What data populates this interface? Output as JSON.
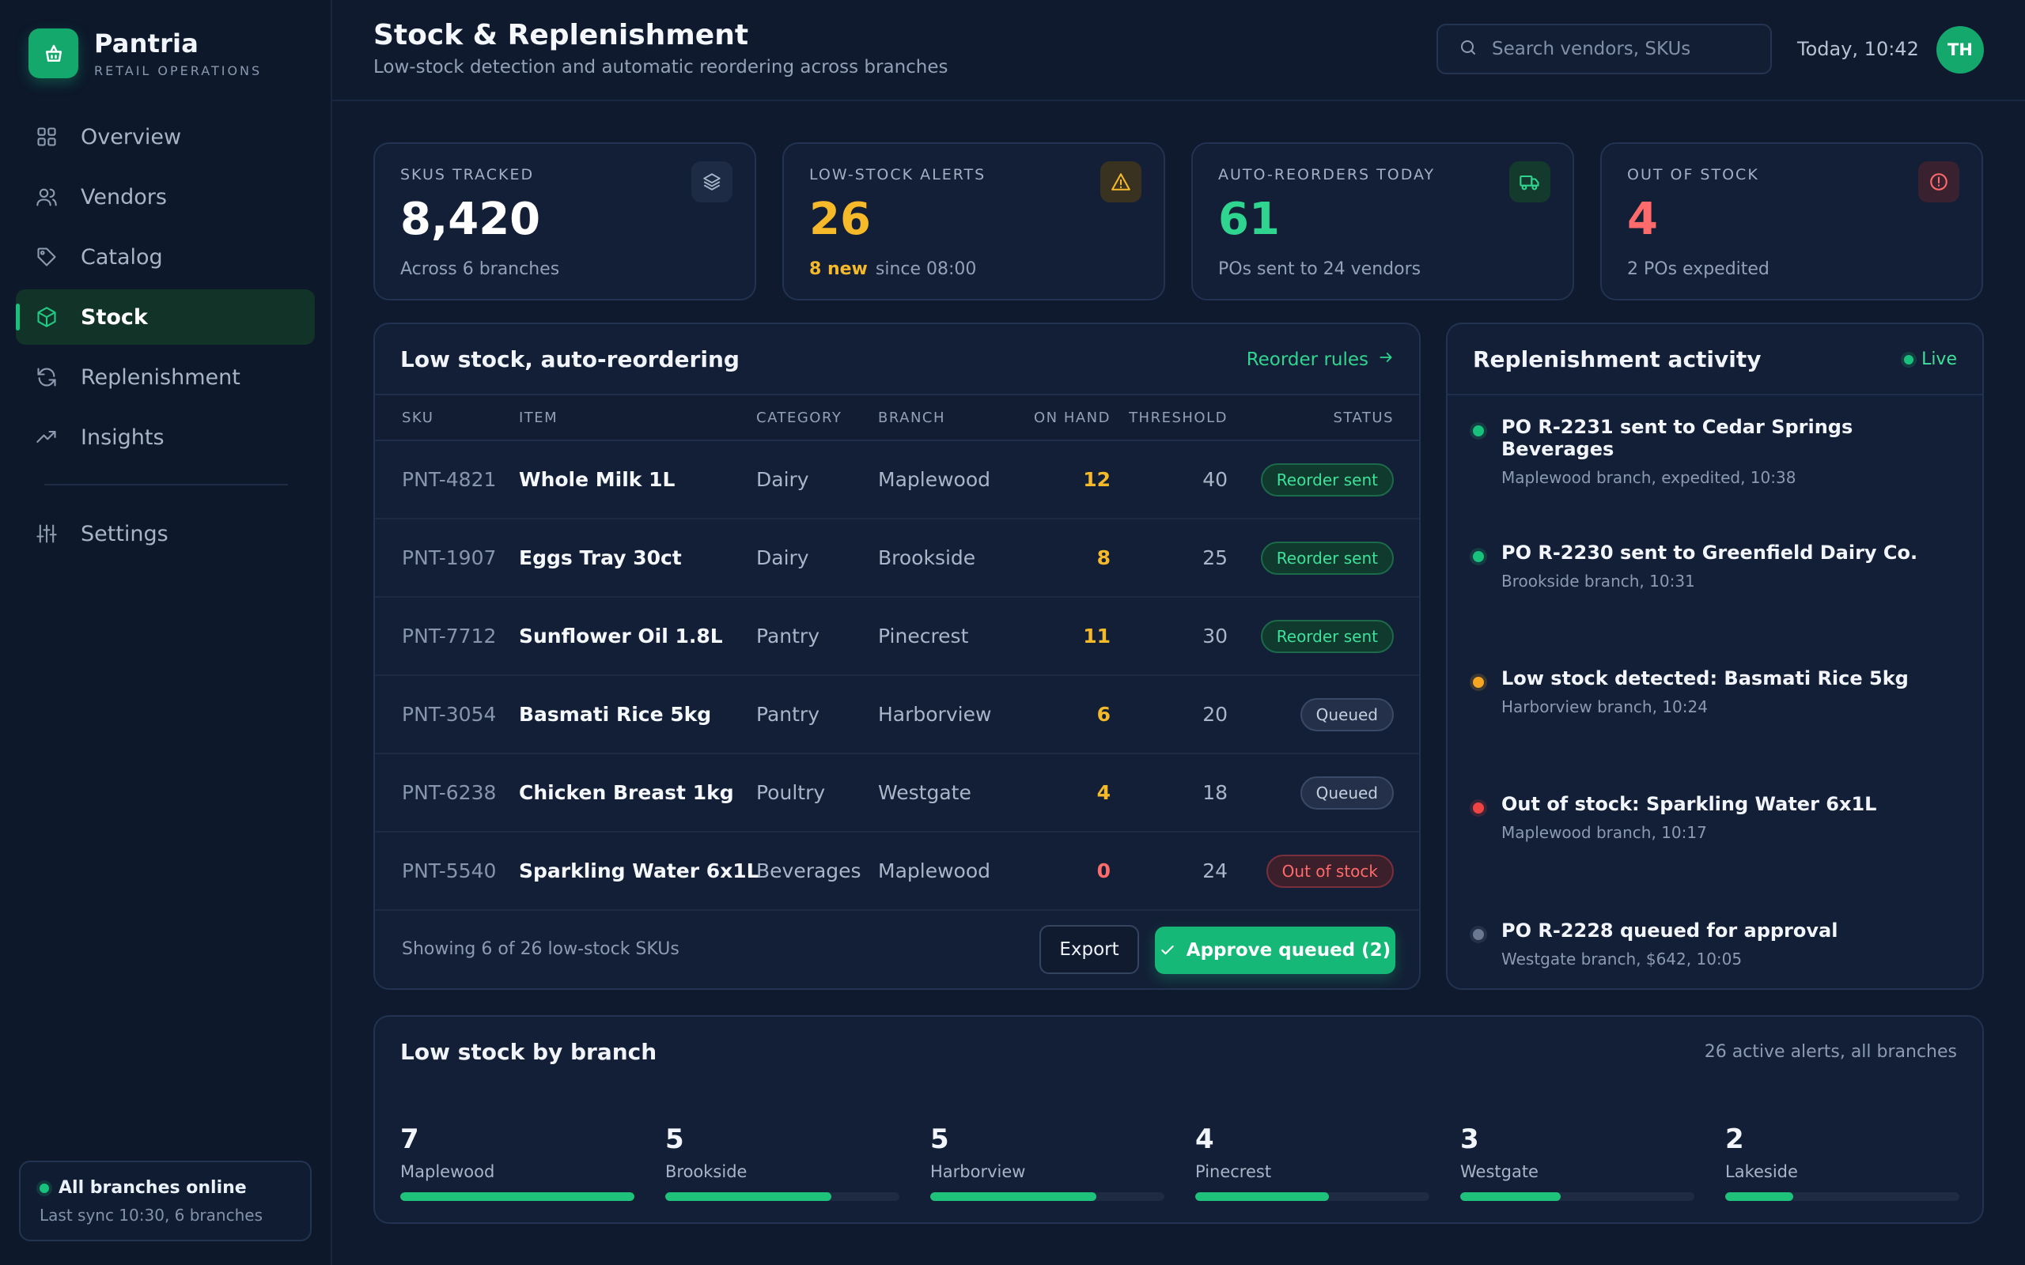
{
  "brand": {
    "name": "Pantria",
    "sub": "RETAIL OPERATIONS"
  },
  "nav": {
    "items": [
      {
        "label": "Overview",
        "icon": "grid-icon"
      },
      {
        "label": "Vendors",
        "icon": "users-icon"
      },
      {
        "label": "Catalog",
        "icon": "tag-icon"
      },
      {
        "label": "Stock",
        "icon": "box-icon",
        "active": true
      },
      {
        "label": "Replenishment",
        "icon": "refresh-icon"
      },
      {
        "label": "Insights",
        "icon": "trend-icon"
      }
    ],
    "settings": "Settings"
  },
  "system_status": {
    "title": "All branches online",
    "sub": "Last sync 10:30, 6 branches"
  },
  "header": {
    "title": "Stock & Replenishment",
    "subtitle": "Low-stock detection and automatic reordering across branches",
    "search_placeholder": "Search vendors, SKUs",
    "today": "Today, 10:42",
    "avatar_initials": "TH"
  },
  "stats": [
    {
      "label": "SKUS TRACKED",
      "value": "8,420",
      "sub": "Across 6 branches",
      "icon": "layers-icon",
      "color": "#ffffff"
    },
    {
      "label": "LOW-STOCK ALERTS",
      "value": "26",
      "highlight": "8 new",
      "sub": "since 08:00",
      "icon": "warning-icon",
      "color": "#f5b92a"
    },
    {
      "label": "AUTO-REORDERS TODAY",
      "value": "61",
      "sub": "POs sent to 24 vendors",
      "icon": "truck-icon",
      "color": "#2fd58f"
    },
    {
      "label": "OUT OF STOCK",
      "value": "4",
      "sub": "2 POs expedited",
      "icon": "alert-circle-icon",
      "color": "#ff6b6b"
    }
  ],
  "low_stock": {
    "title": "Low stock, auto-reordering",
    "rules_link": "Reorder rules",
    "columns": {
      "sku": "SKU",
      "item": "ITEM",
      "category": "CATEGORY",
      "branch": "BRANCH",
      "on_hand": "ON HAND",
      "threshold": "THRESHOLD",
      "status": "STATUS"
    },
    "rows": [
      {
        "sku": "PNT-4821",
        "item": "Whole Milk 1L",
        "category": "Dairy",
        "branch": "Maplewood",
        "on_hand": "12",
        "threshold": "40",
        "status": "Reorder sent",
        "status_kind": "sent"
      },
      {
        "sku": "PNT-1907",
        "item": "Eggs Tray 30ct",
        "category": "Dairy",
        "branch": "Brookside",
        "on_hand": "8",
        "threshold": "25",
        "status": "Reorder sent",
        "status_kind": "sent"
      },
      {
        "sku": "PNT-7712",
        "item": "Sunflower Oil 1.8L",
        "category": "Pantry",
        "branch": "Pinecrest",
        "on_hand": "11",
        "threshold": "30",
        "status": "Reorder sent",
        "status_kind": "sent"
      },
      {
        "sku": "PNT-3054",
        "item": "Basmati Rice 5kg",
        "category": "Pantry",
        "branch": "Harborview",
        "on_hand": "6",
        "threshold": "20",
        "status": "Queued",
        "status_kind": "queued"
      },
      {
        "sku": "PNT-6238",
        "item": "Chicken Breast 1kg",
        "category": "Poultry",
        "branch": "Westgate",
        "on_hand": "4",
        "threshold": "18",
        "status": "Queued",
        "status_kind": "queued"
      },
      {
        "sku": "PNT-5540",
        "item": "Sparkling Water 6x1L",
        "category": "Beverages",
        "branch": "Maplewood",
        "on_hand": "0",
        "threshold": "24",
        "status": "Out of stock",
        "status_kind": "out"
      }
    ],
    "footer": "Showing 6 of 26 low-stock SKUs",
    "export_label": "Export",
    "approve_label": "Approve queued (2)"
  },
  "activity": {
    "title": "Replenishment activity",
    "live_label": "Live",
    "items": [
      {
        "title": "PO R-2231 sent to Cedar Springs Beverages",
        "sub": "Maplewood branch, expedited, 10:38",
        "color": "#19c27c"
      },
      {
        "title": "PO R-2230 sent to Greenfield Dairy Co.",
        "sub": "Brookside branch, 10:31",
        "color": "#19c27c"
      },
      {
        "title": "Low stock detected: Basmati Rice 5kg",
        "sub": "Harborview branch, 10:24",
        "color": "#f5a623"
      },
      {
        "title": "Out of stock: Sparkling Water 6x1L",
        "sub": "Maplewood branch, 10:17",
        "color": "#ef4444"
      },
      {
        "title": "PO R-2228 queued for approval",
        "sub": "Westgate branch, $642, 10:05",
        "color": "#6b7891"
      }
    ]
  },
  "branches": {
    "title": "Low stock by branch",
    "summary": "26 active alerts, all branches",
    "items": [
      {
        "count": "7",
        "name": "Maplewood",
        "fill": 1.0
      },
      {
        "count": "5",
        "name": "Brookside",
        "fill": 0.71
      },
      {
        "count": "5",
        "name": "Harborview",
        "fill": 0.71
      },
      {
        "count": "4",
        "name": "Pinecrest",
        "fill": 0.57
      },
      {
        "count": "3",
        "name": "Westgate",
        "fill": 0.43
      },
      {
        "count": "2",
        "name": "Lakeside",
        "fill": 0.29
      }
    ]
  }
}
